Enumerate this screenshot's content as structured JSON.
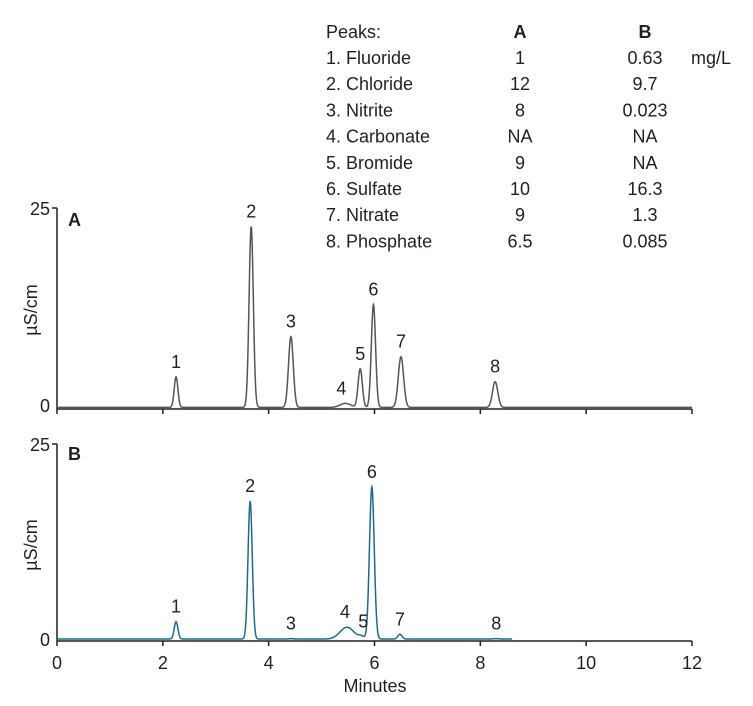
{
  "chart_data": {
    "type": "line",
    "xlabel": "Minutes",
    "ylabel": "µS/cm",
    "xlim": [
      0,
      12
    ],
    "ylim": [
      0,
      25
    ],
    "x_ticks": [
      "0",
      "2",
      "4",
      "6",
      "8",
      "10",
      "12"
    ],
    "y_ticks": [
      "0",
      "25"
    ],
    "colors": {
      "A": "#555555",
      "B": "#1f6b87",
      "axis": "#231f20",
      "text": "#231f20"
    },
    "peak_table": {
      "header": {
        "peaks": "Peaks:",
        "a": "A",
        "b": "B"
      },
      "unit": "mg/L",
      "rows": [
        {
          "name": "1. Fluoride",
          "a": "1",
          "b": "0.63"
        },
        {
          "name": "2. Chloride",
          "a": "12",
          "b": "9.7"
        },
        {
          "name": "3. Nitrite",
          "a": "8",
          "b": "0.023"
        },
        {
          "name": "4. Carbonate",
          "a": "NA",
          "b": "NA"
        },
        {
          "name": "5. Bromide",
          "a": "9",
          "b": "NA"
        },
        {
          "name": "6. Sulfate",
          "a": "10",
          "b": "16.3"
        },
        {
          "name": "7. Nitrate",
          "a": "9",
          "b": "1.3"
        },
        {
          "name": "8. Phosphate",
          "a": "6.5",
          "b": "0.085"
        }
      ]
    },
    "series": [
      {
        "name": "A",
        "baseline": 0.2,
        "peaks": [
          {
            "label": "1",
            "t": 2.25,
            "h": 3.8,
            "w": 0.035
          },
          {
            "label": "2",
            "t": 3.67,
            "h": 22.5,
            "w": 0.04
          },
          {
            "label": "3",
            "t": 4.42,
            "h": 8.8,
            "w": 0.045
          },
          {
            "label": "4",
            "t": 5.45,
            "h": 0.5,
            "w": 0.1
          },
          {
            "label": "5",
            "t": 5.73,
            "h": 4.8,
            "w": 0.04
          },
          {
            "label": "6",
            "t": 5.98,
            "h": 12.8,
            "w": 0.04
          },
          {
            "label": "7",
            "t": 6.5,
            "h": 6.3,
            "w": 0.05
          },
          {
            "label": "8",
            "t": 8.28,
            "h": 3.2,
            "w": 0.05
          }
        ]
      },
      {
        "name": "B",
        "baseline": 0.25,
        "peaks": [
          {
            "label": "1",
            "t": 2.25,
            "h": 2.2,
            "w": 0.035
          },
          {
            "label": "2",
            "t": 3.65,
            "h": 17.5,
            "w": 0.04
          },
          {
            "label": "3",
            "t": 4.42,
            "h": 0.05,
            "w": 0.04
          },
          {
            "label": "4",
            "t": 5.48,
            "h": 1.5,
            "w": 0.13
          },
          {
            "label": "5",
            "t": 5.75,
            "h": 0.3,
            "w": 0.05
          },
          {
            "label": "6",
            "t": 5.95,
            "h": 19.3,
            "w": 0.045
          },
          {
            "label": "7",
            "t": 6.48,
            "h": 0.6,
            "w": 0.04
          },
          {
            "label": "8",
            "t": 8.3,
            "h": 0.05,
            "w": 0.05
          }
        ]
      }
    ]
  }
}
